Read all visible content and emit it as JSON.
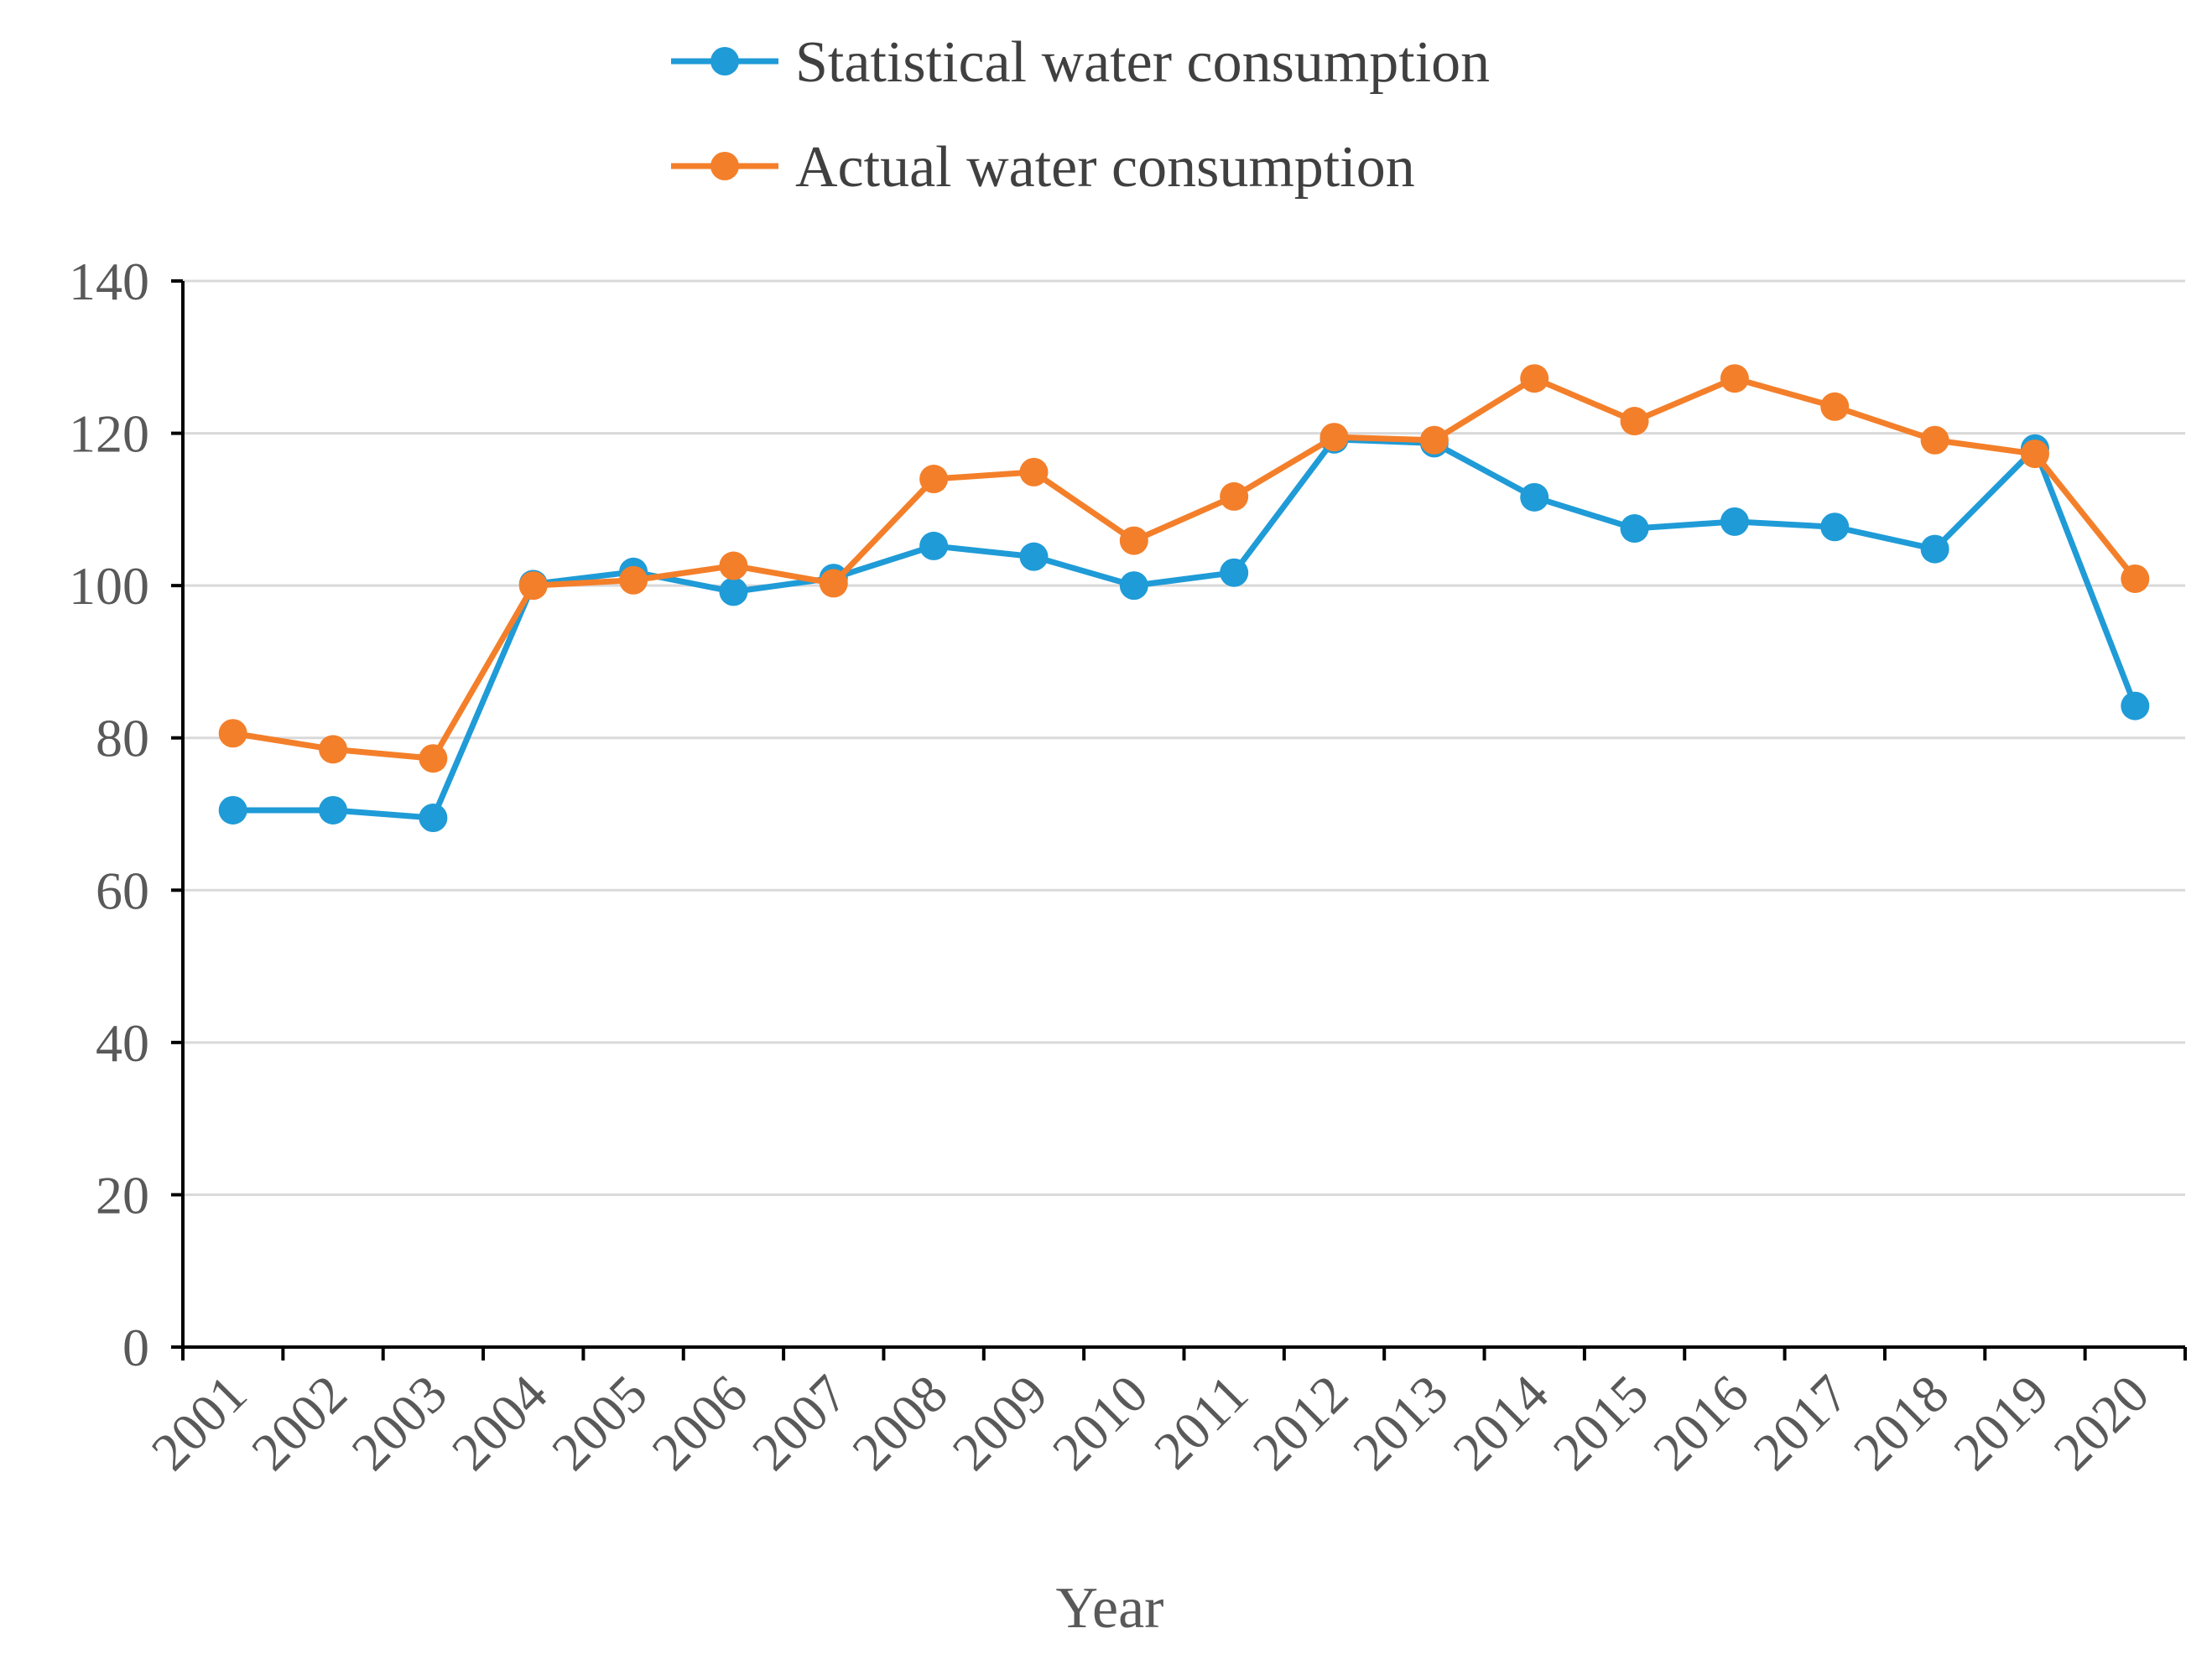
{
  "chart_data": {
    "type": "line",
    "title": "",
    "xlabel": "Year",
    "ylabel": "",
    "ylim": [
      0,
      140
    ],
    "yticks": [
      0,
      20,
      40,
      60,
      80,
      100,
      120,
      140
    ],
    "grid": true,
    "legend_position": "top-center",
    "categories": [
      "2001",
      "2002",
      "2003",
      "2004",
      "2005",
      "2006",
      "2007",
      "2008",
      "2009",
      "2010",
      "2011",
      "2012",
      "2013",
      "2014",
      "2015",
      "2016",
      "2017",
      "2018",
      "2019",
      "2020"
    ],
    "series": [
      {
        "name": "Statistical water consumption",
        "color": "#1F9BD7",
        "values": [
          70.5,
          70.5,
          69.5,
          100.2,
          101.8,
          99.2,
          101.0,
          105.2,
          103.8,
          100.0,
          101.7,
          119.2,
          118.7,
          111.6,
          107.5,
          108.4,
          107.7,
          104.8,
          118.0,
          84.2
        ]
      },
      {
        "name": "Actual water consumption",
        "color": "#F47F2A",
        "values": [
          80.6,
          78.5,
          77.3,
          100.0,
          100.7,
          102.6,
          100.3,
          114.0,
          114.9,
          105.9,
          111.7,
          119.5,
          119.1,
          127.2,
          121.6,
          127.2,
          123.5,
          119.1,
          117.3,
          100.9
        ]
      }
    ]
  }
}
